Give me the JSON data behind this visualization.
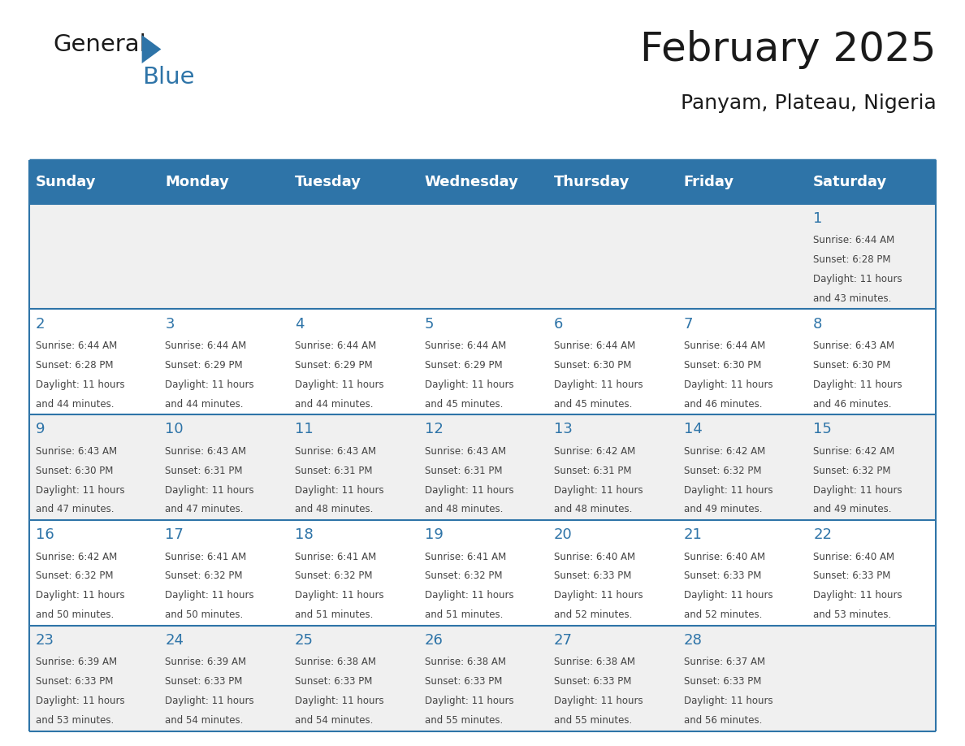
{
  "title": "February 2025",
  "subtitle": "Panyam, Plateau, Nigeria",
  "days_of_week": [
    "Sunday",
    "Monday",
    "Tuesday",
    "Wednesday",
    "Thursday",
    "Friday",
    "Saturday"
  ],
  "header_bg": "#2E74A8",
  "header_text": "#FFFFFF",
  "row_bg_light": "#F0F0F0",
  "row_bg_white": "#FFFFFF",
  "separator_color": "#2E74A8",
  "text_color": "#444444",
  "day_num_color": "#2E74A8",
  "calendar_data": [
    [
      null,
      null,
      null,
      null,
      null,
      null,
      {
        "day": 1,
        "sunrise": "6:44 AM",
        "sunset": "6:28 PM",
        "daylight": "11 hours and 43 minutes."
      }
    ],
    [
      {
        "day": 2,
        "sunrise": "6:44 AM",
        "sunset": "6:28 PM",
        "daylight": "11 hours and 44 minutes."
      },
      {
        "day": 3,
        "sunrise": "6:44 AM",
        "sunset": "6:29 PM",
        "daylight": "11 hours and 44 minutes."
      },
      {
        "day": 4,
        "sunrise": "6:44 AM",
        "sunset": "6:29 PM",
        "daylight": "11 hours and 44 minutes."
      },
      {
        "day": 5,
        "sunrise": "6:44 AM",
        "sunset": "6:29 PM",
        "daylight": "11 hours and 45 minutes."
      },
      {
        "day": 6,
        "sunrise": "6:44 AM",
        "sunset": "6:30 PM",
        "daylight": "11 hours and 45 minutes."
      },
      {
        "day": 7,
        "sunrise": "6:44 AM",
        "sunset": "6:30 PM",
        "daylight": "11 hours and 46 minutes."
      },
      {
        "day": 8,
        "sunrise": "6:43 AM",
        "sunset": "6:30 PM",
        "daylight": "11 hours and 46 minutes."
      }
    ],
    [
      {
        "day": 9,
        "sunrise": "6:43 AM",
        "sunset": "6:30 PM",
        "daylight": "11 hours and 47 minutes."
      },
      {
        "day": 10,
        "sunrise": "6:43 AM",
        "sunset": "6:31 PM",
        "daylight": "11 hours and 47 minutes."
      },
      {
        "day": 11,
        "sunrise": "6:43 AM",
        "sunset": "6:31 PM",
        "daylight": "11 hours and 48 minutes."
      },
      {
        "day": 12,
        "sunrise": "6:43 AM",
        "sunset": "6:31 PM",
        "daylight": "11 hours and 48 minutes."
      },
      {
        "day": 13,
        "sunrise": "6:42 AM",
        "sunset": "6:31 PM",
        "daylight": "11 hours and 48 minutes."
      },
      {
        "day": 14,
        "sunrise": "6:42 AM",
        "sunset": "6:32 PM",
        "daylight": "11 hours and 49 minutes."
      },
      {
        "day": 15,
        "sunrise": "6:42 AM",
        "sunset": "6:32 PM",
        "daylight": "11 hours and 49 minutes."
      }
    ],
    [
      {
        "day": 16,
        "sunrise": "6:42 AM",
        "sunset": "6:32 PM",
        "daylight": "11 hours and 50 minutes."
      },
      {
        "day": 17,
        "sunrise": "6:41 AM",
        "sunset": "6:32 PM",
        "daylight": "11 hours and 50 minutes."
      },
      {
        "day": 18,
        "sunrise": "6:41 AM",
        "sunset": "6:32 PM",
        "daylight": "11 hours and 51 minutes."
      },
      {
        "day": 19,
        "sunrise": "6:41 AM",
        "sunset": "6:32 PM",
        "daylight": "11 hours and 51 minutes."
      },
      {
        "day": 20,
        "sunrise": "6:40 AM",
        "sunset": "6:33 PM",
        "daylight": "11 hours and 52 minutes."
      },
      {
        "day": 21,
        "sunrise": "6:40 AM",
        "sunset": "6:33 PM",
        "daylight": "11 hours and 52 minutes."
      },
      {
        "day": 22,
        "sunrise": "6:40 AM",
        "sunset": "6:33 PM",
        "daylight": "11 hours and 53 minutes."
      }
    ],
    [
      {
        "day": 23,
        "sunrise": "6:39 AM",
        "sunset": "6:33 PM",
        "daylight": "11 hours and 53 minutes."
      },
      {
        "day": 24,
        "sunrise": "6:39 AM",
        "sunset": "6:33 PM",
        "daylight": "11 hours and 54 minutes."
      },
      {
        "day": 25,
        "sunrise": "6:38 AM",
        "sunset": "6:33 PM",
        "daylight": "11 hours and 54 minutes."
      },
      {
        "day": 26,
        "sunrise": "6:38 AM",
        "sunset": "6:33 PM",
        "daylight": "11 hours and 55 minutes."
      },
      {
        "day": 27,
        "sunrise": "6:38 AM",
        "sunset": "6:33 PM",
        "daylight": "11 hours and 55 minutes."
      },
      {
        "day": 28,
        "sunrise": "6:37 AM",
        "sunset": "6:33 PM",
        "daylight": "11 hours and 56 minutes."
      },
      null
    ]
  ],
  "num_rows": 5,
  "num_cols": 7,
  "logo_text_general": "General",
  "logo_text_blue": "Blue",
  "logo_color_general": "#1a1a1a",
  "logo_color_blue": "#2E74A8",
  "logo_triangle_color": "#2E74A8",
  "title_fontsize": 36,
  "subtitle_fontsize": 18,
  "dow_fontsize": 13,
  "day_num_fontsize": 13,
  "cell_text_fontsize": 8.5
}
